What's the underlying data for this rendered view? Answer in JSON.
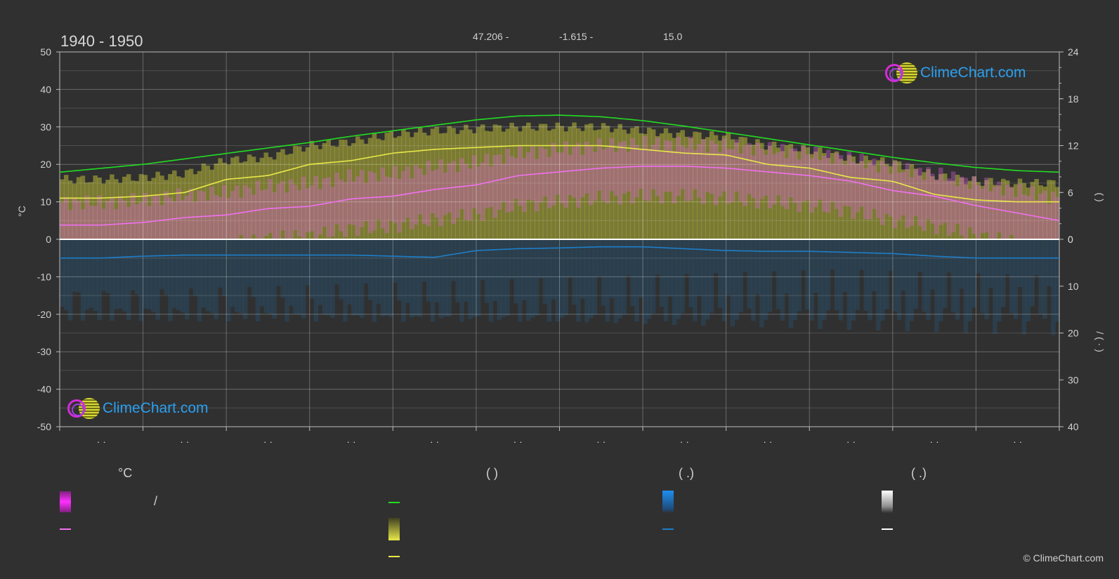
{
  "header": {
    "period": "1940 - 1950",
    "lat": "47.206 -",
    "lon": "-1.615 -",
    "elev": "15.0"
  },
  "logo": {
    "text": "ClimeChart.com"
  },
  "copyright": "© ClimeChart.com",
  "colors": {
    "background": "#303030",
    "daylight": "#22dd22",
    "sunshine": "#e8e84a",
    "mean_temp": "#f070f0",
    "precip": "#1e7ec8",
    "snow": "#ffffff",
    "temp_range": "#e060e0",
    "sunshine_band": "#b8b83a"
  },
  "legend": {
    "temp_head": "°C",
    "sun_head": "(          )",
    "rain_head": "(    .)",
    "snow_head": "(    .)",
    "temp_range_slash": "/"
  },
  "chart_data": {
    "type": "line",
    "xlabel": "",
    "ylabel": "°C",
    "ylim": [
      -50,
      50
    ],
    "yticks": [
      "50",
      "40",
      "30",
      "20",
      "10",
      "0",
      "-10",
      "-20",
      "-30",
      "-40",
      "-50"
    ],
    "y2_sun_ticks": [
      "24",
      "18",
      "12",
      "6",
      "0"
    ],
    "y2_precip_ticks": [
      "0",
      "10",
      "20",
      "30",
      "40"
    ],
    "y2_label_upper": "(    )",
    "y2_label_lower": "/    (  ·  )",
    "x_tick_labels": [
      "· ·",
      "· ·",
      "· ·",
      "· ·",
      "· ·",
      "· ·",
      "· ·",
      "· ·",
      "· ·",
      "· ·",
      "· ·",
      "· ·"
    ],
    "grid": true,
    "x": [
      0,
      0.5,
      1,
      1.5,
      2,
      2.5,
      3,
      3.5,
      4,
      4.5,
      5,
      5.5,
      6,
      6.5,
      7,
      7.5,
      8,
      8.5,
      9,
      9.5,
      10,
      10.5,
      11,
      11.5,
      12
    ],
    "series": [
      {
        "key": "daylight",
        "unit": "hours",
        "values": [
          8.6,
          9.1,
          9.6,
          10.3,
          11.0,
          11.7,
          12.4,
          13.2,
          13.9,
          14.6,
          15.3,
          15.8,
          15.9,
          15.7,
          15.2,
          14.5,
          13.7,
          12.9,
          12.1,
          11.3,
          10.5,
          9.8,
          9.2,
          8.8,
          8.6
        ]
      },
      {
        "key": "sunshine",
        "unit": "°C",
        "values": [
          11.0,
          11.0,
          11.5,
          12.5,
          16.0,
          17.0,
          20.0,
          21.0,
          23.0,
          24.0,
          24.5,
          25.0,
          25.0,
          25.0,
          24.0,
          23.0,
          22.5,
          20.0,
          19.0,
          16.5,
          15.5,
          12.0,
          10.5,
          10.0,
          10.0
        ]
      },
      {
        "key": "mean_temp",
        "unit": "°C",
        "values": [
          3.8,
          3.8,
          4.5,
          5.8,
          6.5,
          8.2,
          8.8,
          10.8,
          11.5,
          13.3,
          14.5,
          17.0,
          18.0,
          19.0,
          19.5,
          19.5,
          19.0,
          18.0,
          17.0,
          15.5,
          13.0,
          11.5,
          9.0,
          7.0,
          5.0
        ]
      },
      {
        "key": "precip",
        "unit": "°C",
        "values": [
          -5.0,
          -5.0,
          -4.5,
          -4.2,
          -4.2,
          -4.2,
          -4.2,
          -4.2,
          -4.5,
          -4.8,
          -3.0,
          -2.5,
          -2.3,
          -2.0,
          -2.0,
          -2.5,
          -3.0,
          -3.2,
          -3.2,
          -3.5,
          -3.8,
          -4.5,
          -5.0,
          -5.0,
          -5.0
        ]
      }
    ]
  }
}
